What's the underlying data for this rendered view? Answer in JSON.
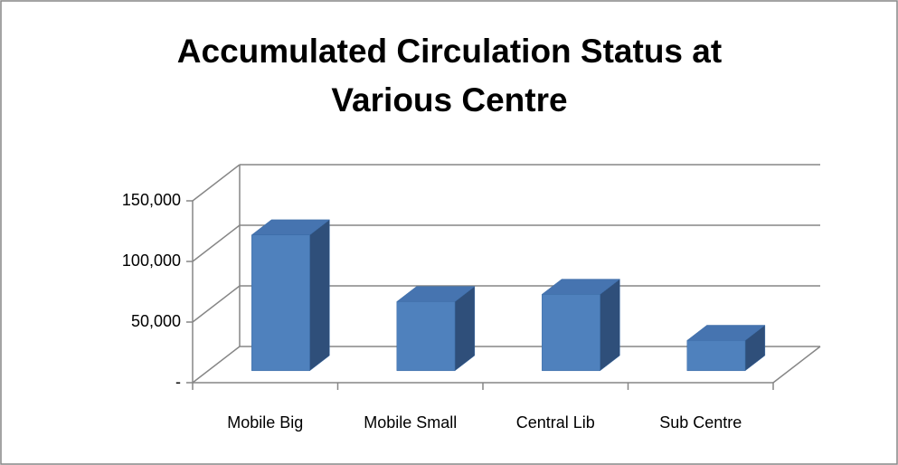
{
  "chart_data": {
    "type": "bar3d",
    "title": "Accumulated Circulation Status at Various Centre",
    "categories": [
      "Mobile Big",
      "Mobile Small",
      "Central Lib",
      "Sub Centre"
    ],
    "values": [
      112000,
      57000,
      63000,
      25000
    ],
    "color": "#4f81bd",
    "ylim": [
      0,
      150000
    ],
    "yticks": [
      {
        "value": 0,
        "label": "-"
      },
      {
        "value": 50000,
        "label": "50,000"
      },
      {
        "value": 100000,
        "label": "100,000"
      },
      {
        "value": 150000,
        "label": "150,000"
      }
    ],
    "grid": true
  }
}
